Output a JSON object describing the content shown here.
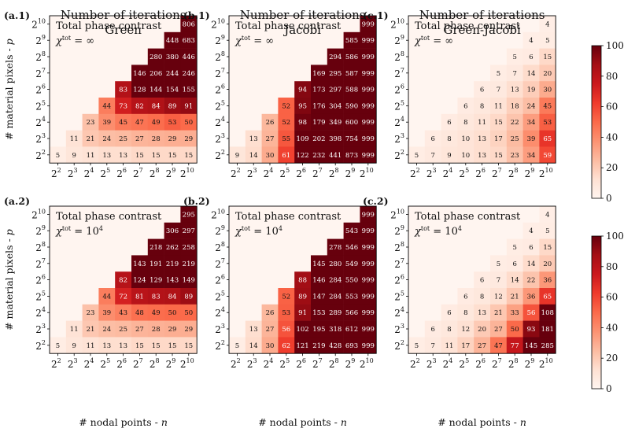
{
  "figure": {
    "xlabel": "# nodal points - ",
    "xlabel_var": "n",
    "ylabel": "# material pixels - ",
    "ylabel_var": "p",
    "tick_base": "2",
    "tick_exponents": [
      "2",
      "3",
      "4",
      "5",
      "6",
      "7",
      "8",
      "9",
      "10"
    ],
    "title_line1": "Number of iterations",
    "colorbar_ticks": [
      "0",
      "20",
      "40",
      "60",
      "80",
      "100"
    ]
  },
  "colors": {
    "low": "#fff5f0",
    "high": "#67000d"
  },
  "chart_data": [
    {
      "type": "heatmap",
      "id": "a1",
      "label": "(a.1)",
      "title": "Number of iterations",
      "subtitle": "Green",
      "annotation": "Total phase contrast",
      "chi_value": "∞",
      "vmin": 0,
      "vmax": 100,
      "rows": [
        [
          null,
          null,
          null,
          null,
          null,
          null,
          null,
          null,
          806
        ],
        [
          null,
          null,
          null,
          null,
          null,
          null,
          null,
          448,
          683
        ],
        [
          null,
          null,
          null,
          null,
          null,
          null,
          280,
          380,
          446
        ],
        [
          null,
          null,
          null,
          null,
          null,
          146,
          206,
          244,
          246
        ],
        [
          null,
          null,
          null,
          null,
          83,
          128,
          144,
          154,
          155
        ],
        [
          null,
          null,
          null,
          44,
          73,
          82,
          84,
          89,
          91
        ],
        [
          null,
          null,
          23,
          39,
          45,
          47,
          49,
          53,
          50
        ],
        [
          null,
          11,
          21,
          24,
          25,
          27,
          28,
          29,
          29
        ],
        [
          5,
          9,
          11,
          13,
          13,
          15,
          15,
          15,
          15
        ]
      ]
    },
    {
      "type": "heatmap",
      "id": "b1",
      "label": "(b.1)",
      "title": "Number of iterations",
      "subtitle": "Jacobi",
      "annotation": "Total phase contrast",
      "chi_value": "∞",
      "vmin": 0,
      "vmax": 100,
      "rows": [
        [
          null,
          null,
          null,
          null,
          null,
          null,
          null,
          null,
          999
        ],
        [
          null,
          null,
          null,
          null,
          null,
          null,
          null,
          585,
          999
        ],
        [
          null,
          null,
          null,
          null,
          null,
          null,
          294,
          586,
          999
        ],
        [
          null,
          null,
          null,
          null,
          null,
          169,
          295,
          587,
          999
        ],
        [
          null,
          null,
          null,
          null,
          94,
          173,
          297,
          588,
          999
        ],
        [
          null,
          null,
          null,
          52,
          95,
          176,
          304,
          590,
          999
        ],
        [
          null,
          null,
          26,
          52,
          98,
          179,
          349,
          600,
          999
        ],
        [
          null,
          13,
          27,
          55,
          109,
          202,
          398,
          754,
          999
        ],
        [
          9,
          14,
          30,
          61,
          122,
          232,
          441,
          873,
          999
        ]
      ]
    },
    {
      "type": "heatmap",
      "id": "c1",
      "label": "(c.1)",
      "title": "Number of iterations",
      "subtitle": "Green-Jacobi",
      "annotation": "Total phase contrast",
      "chi_value": "∞",
      "vmin": 0,
      "vmax": 100,
      "rows": [
        [
          null,
          null,
          null,
          null,
          null,
          null,
          null,
          null,
          4
        ],
        [
          null,
          null,
          null,
          null,
          null,
          null,
          null,
          4,
          5
        ],
        [
          null,
          null,
          null,
          null,
          null,
          null,
          5,
          6,
          15
        ],
        [
          null,
          null,
          null,
          null,
          null,
          5,
          7,
          14,
          20
        ],
        [
          null,
          null,
          null,
          null,
          6,
          7,
          13,
          19,
          30
        ],
        [
          null,
          null,
          null,
          6,
          8,
          11,
          18,
          24,
          45
        ],
        [
          null,
          null,
          6,
          8,
          11,
          15,
          22,
          34,
          53
        ],
        [
          null,
          6,
          8,
          10,
          13,
          17,
          25,
          39,
          65
        ],
        [
          5,
          7,
          9,
          10,
          13,
          15,
          23,
          34,
          59
        ]
      ]
    },
    {
      "type": "heatmap",
      "id": "a2",
      "label": "(a.2)",
      "title": "",
      "subtitle": "",
      "annotation": "Total phase contrast",
      "chi_value": "10",
      "chi_exp": "4",
      "vmin": 0,
      "vmax": 100,
      "rows": [
        [
          null,
          null,
          null,
          null,
          null,
          null,
          null,
          null,
          295
        ],
        [
          null,
          null,
          null,
          null,
          null,
          null,
          null,
          306,
          297
        ],
        [
          null,
          null,
          null,
          null,
          null,
          null,
          218,
          262,
          258
        ],
        [
          null,
          null,
          null,
          null,
          null,
          143,
          191,
          219,
          219
        ],
        [
          null,
          null,
          null,
          null,
          82,
          124,
          129,
          143,
          149
        ],
        [
          null,
          null,
          null,
          44,
          72,
          81,
          83,
          84,
          89
        ],
        [
          null,
          null,
          23,
          39,
          43,
          48,
          49,
          50,
          50
        ],
        [
          null,
          11,
          21,
          24,
          25,
          27,
          28,
          29,
          29
        ],
        [
          5,
          9,
          11,
          13,
          13,
          15,
          15,
          15,
          15
        ]
      ]
    },
    {
      "type": "heatmap",
      "id": "b2",
      "label": "(b.2)",
      "title": "",
      "subtitle": "",
      "annotation": "Total phase contrast",
      "chi_value": "10",
      "chi_exp": "4",
      "vmin": 0,
      "vmax": 100,
      "rows": [
        [
          null,
          null,
          null,
          null,
          null,
          null,
          null,
          null,
          999
        ],
        [
          null,
          null,
          null,
          null,
          null,
          null,
          null,
          543,
          999
        ],
        [
          null,
          null,
          null,
          null,
          null,
          null,
          278,
          546,
          999
        ],
        [
          null,
          null,
          null,
          null,
          null,
          145,
          280,
          549,
          999
        ],
        [
          null,
          null,
          null,
          null,
          88,
          146,
          284,
          550,
          999
        ],
        [
          null,
          null,
          null,
          52,
          89,
          147,
          284,
          553,
          999
        ],
        [
          null,
          null,
          26,
          53,
          91,
          153,
          289,
          566,
          999
        ],
        [
          null,
          13,
          27,
          56,
          102,
          195,
          318,
          612,
          999
        ],
        [
          5,
          14,
          30,
          62,
          121,
          219,
          428,
          693,
          999
        ]
      ]
    },
    {
      "type": "heatmap",
      "id": "c2",
      "label": "(c.2)",
      "title": "",
      "subtitle": "",
      "annotation": "Total phase contrast",
      "chi_value": "10",
      "chi_exp": "4",
      "vmin": 0,
      "vmax": 100,
      "rows": [
        [
          null,
          null,
          null,
          null,
          null,
          null,
          null,
          null,
          4
        ],
        [
          null,
          null,
          null,
          null,
          null,
          null,
          null,
          4,
          5
        ],
        [
          null,
          null,
          null,
          null,
          null,
          null,
          5,
          6,
          15
        ],
        [
          null,
          null,
          null,
          null,
          null,
          5,
          6,
          14,
          20
        ],
        [
          null,
          null,
          null,
          null,
          6,
          7,
          14,
          22,
          36
        ],
        [
          null,
          null,
          null,
          6,
          8,
          12,
          21,
          36,
          65
        ],
        [
          null,
          null,
          6,
          8,
          13,
          21,
          33,
          56,
          108
        ],
        [
          null,
          6,
          8,
          12,
          20,
          27,
          50,
          93,
          181
        ],
        [
          5,
          7,
          11,
          17,
          27,
          47,
          77,
          145,
          285
        ]
      ]
    }
  ]
}
